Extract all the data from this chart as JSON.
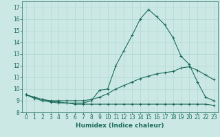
{
  "title": "",
  "xlabel": "Humidex (Indice chaleur)",
  "ylabel": "",
  "background_color": "#cce8e4",
  "grid_color": "#b0d8d0",
  "line_color": "#1a6b5a",
  "x_ticks": [
    0,
    1,
    2,
    3,
    4,
    5,
    6,
    7,
    8,
    9,
    10,
    11,
    12,
    13,
    14,
    15,
    16,
    17,
    18,
    19,
    20,
    21,
    22,
    23
  ],
  "y_ticks": [
    8,
    9,
    10,
    11,
    12,
    13,
    14,
    15,
    16,
    17
  ],
  "xlim": [
    -0.5,
    23.5
  ],
  "ylim": [
    8.0,
    17.5
  ],
  "series1_x": [
    0,
    1,
    2,
    3,
    4,
    5,
    6,
    7,
    8,
    9,
    10,
    11,
    12,
    13,
    14,
    15,
    16,
    17,
    18,
    19,
    20,
    21,
    22,
    23
  ],
  "series1_y": [
    9.5,
    9.3,
    9.1,
    8.9,
    8.9,
    8.8,
    8.8,
    8.8,
    9.0,
    9.9,
    10.0,
    12.0,
    13.3,
    14.6,
    16.0,
    16.8,
    16.2,
    15.5,
    14.4,
    12.8,
    12.1,
    10.6,
    9.3,
    9.0
  ],
  "series2_x": [
    0,
    1,
    2,
    3,
    4,
    5,
    6,
    7,
    8,
    9,
    10,
    11,
    12,
    13,
    14,
    15,
    16,
    17,
    18,
    19,
    20,
    21,
    22,
    23
  ],
  "series2_y": [
    9.5,
    9.3,
    9.1,
    9.0,
    9.0,
    9.0,
    9.0,
    9.0,
    9.1,
    9.3,
    9.6,
    10.0,
    10.3,
    10.6,
    10.9,
    11.1,
    11.3,
    11.4,
    11.5,
    11.8,
    11.9,
    11.6,
    11.2,
    10.8
  ],
  "series3_x": [
    0,
    1,
    2,
    3,
    4,
    5,
    6,
    7,
    8,
    9,
    10,
    11,
    12,
    13,
    14,
    15,
    16,
    17,
    18,
    19,
    20,
    21,
    22,
    23
  ],
  "series3_y": [
    9.5,
    9.2,
    9.0,
    8.9,
    8.8,
    8.8,
    8.7,
    8.7,
    8.7,
    8.7,
    8.7,
    8.7,
    8.7,
    8.7,
    8.7,
    8.7,
    8.7,
    8.7,
    8.7,
    8.7,
    8.7,
    8.7,
    8.7,
    8.6
  ]
}
